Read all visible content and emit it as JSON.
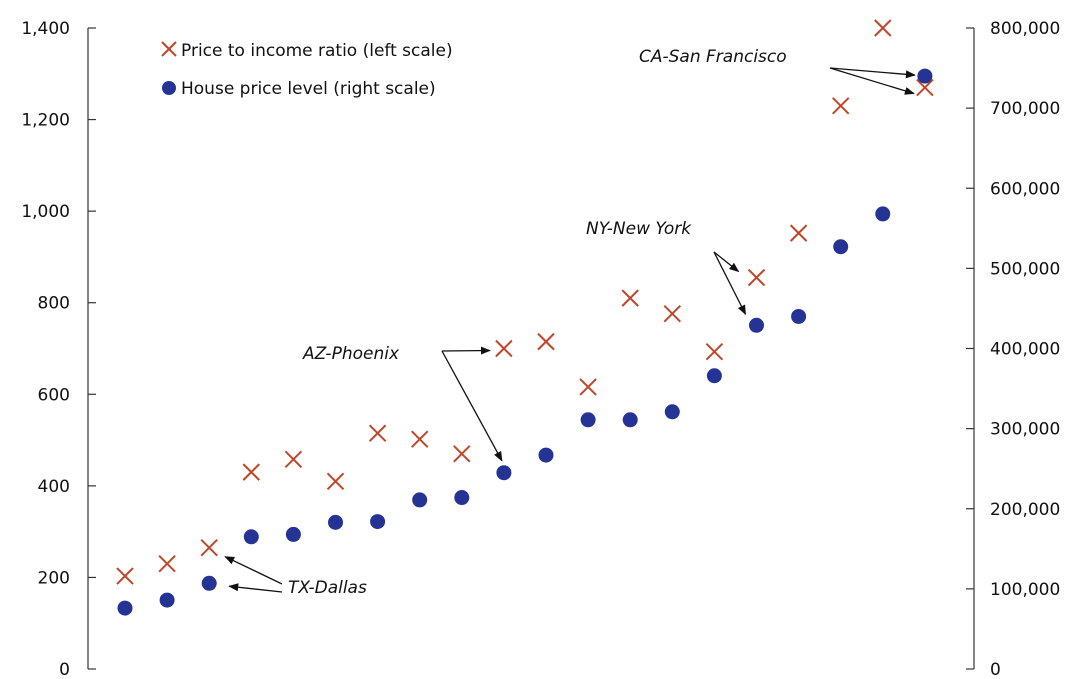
{
  "chart_data": {
    "type": "scatter",
    "title": "",
    "xlabel": "",
    "y_left": {
      "ylim": [
        0,
        1400
      ],
      "ticks": [
        0,
        200,
        400,
        600,
        800,
        1000,
        1200,
        1400
      ],
      "tick_labels": [
        "0",
        "200",
        "400",
        "600",
        "800",
        "1,000",
        "1,200",
        "1,400"
      ]
    },
    "y_right": {
      "ylim": [
        0,
        800000
      ],
      "ticks": [
        0,
        100000,
        200000,
        300000,
        400000,
        500000,
        600000,
        700000,
        800000
      ],
      "tick_labels": [
        "0",
        "100,000",
        "200,000",
        "300,000",
        "400,000",
        "500,000",
        "600,000",
        "700,000",
        "800,000"
      ]
    },
    "x": [
      1,
      2,
      3,
      4,
      5,
      6,
      7,
      8,
      9,
      10,
      11,
      12,
      13,
      14,
      15,
      16,
      17,
      18,
      19,
      20
    ],
    "series": [
      {
        "name": "Price to income ratio (left scale)",
        "axis": "left",
        "marker": "x",
        "color": "#c0462a",
        "values": [
          203,
          230,
          265,
          430,
          458,
          410,
          515,
          502,
          470,
          700,
          715,
          616,
          810,
          776,
          693,
          855,
          952,
          1230,
          1400,
          1270
        ]
      },
      {
        "name": "House price level (right scale)",
        "axis": "right",
        "marker": "circle",
        "color": "#253494",
        "values": [
          76000,
          86000,
          107000,
          165000,
          168000,
          183000,
          184000,
          211000,
          214000,
          245000,
          267000,
          311000,
          311000,
          321000,
          366000,
          429000,
          440000,
          527000,
          568000,
          740000
        ]
      }
    ],
    "legend": {
      "placement": "top-left"
    },
    "grid": false,
    "annotations": [
      {
        "text": "TX-Dallas",
        "targets": [
          {
            "series": 0,
            "index": 2
          },
          {
            "series": 1,
            "index": 2
          }
        ]
      },
      {
        "text": "AZ-Phoenix",
        "targets": [
          {
            "series": 0,
            "index": 9
          },
          {
            "series": 1,
            "index": 9
          }
        ]
      },
      {
        "text": "NY-New York",
        "targets": [
          {
            "series": 0,
            "index": 15
          },
          {
            "series": 1,
            "index": 15
          }
        ]
      },
      {
        "text": "CA-San Francisco",
        "targets": [
          {
            "series": 0,
            "index": 19
          },
          {
            "series": 1,
            "index": 19
          }
        ]
      }
    ]
  }
}
